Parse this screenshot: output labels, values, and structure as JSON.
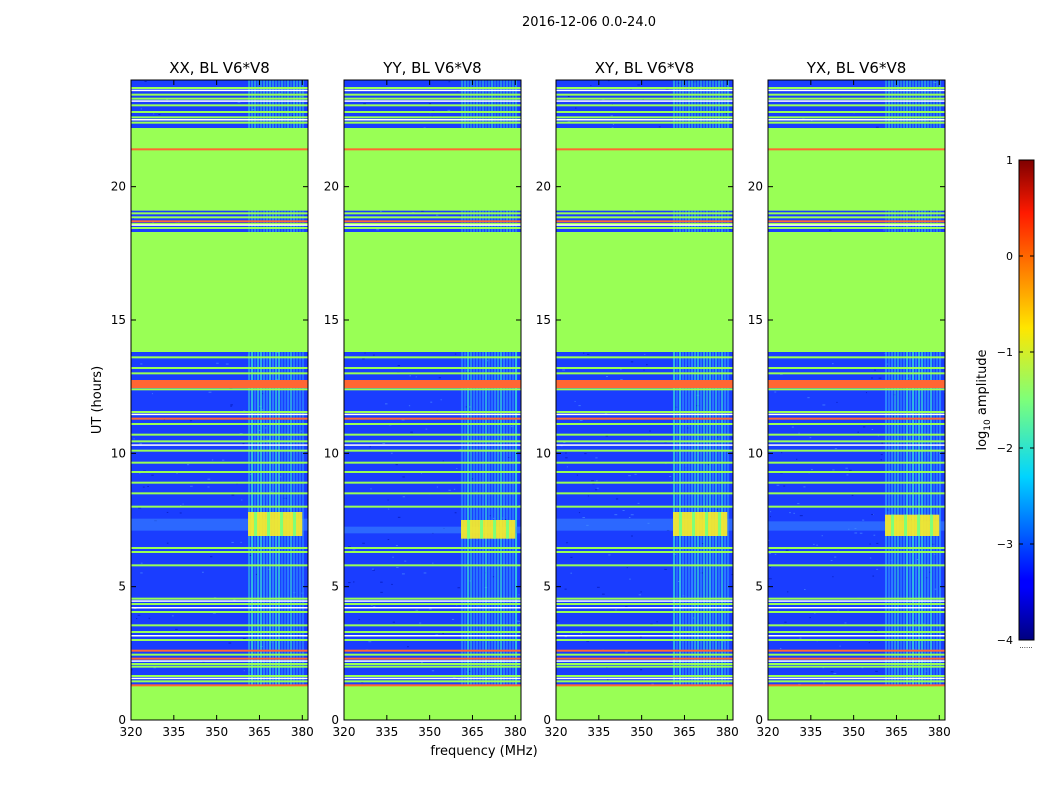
{
  "chart_data": {
    "type": "heatmap",
    "suptitle": "2016-12-06 0.0-24.0",
    "xlabel": "frequency (MHz)",
    "ylabel": "UT (hours)",
    "xlim": [
      320,
      382
    ],
    "ylim": [
      0,
      24
    ],
    "xticks": [
      320,
      335,
      350,
      365,
      380
    ],
    "yticks": [
      0,
      5,
      10,
      15,
      20
    ],
    "panels": [
      {
        "title": "XX, BL V6*V8",
        "bright_band_hours": [
          6.9,
          7.8
        ]
      },
      {
        "title": "YY, BL V6*V8",
        "bright_band_hours": [
          6.8,
          7.5
        ]
      },
      {
        "title": "XY, BL V6*V8",
        "bright_band_hours": [
          6.9,
          7.8
        ]
      },
      {
        "title": "YX, BL V6*V8",
        "bright_band_hours": [
          6.9,
          7.7
        ]
      }
    ],
    "rfi_band_mhz": [
      361,
      380
    ],
    "flagged_hours": [
      [
        0,
        1.3
      ],
      [
        13.8,
        18.3
      ],
      [
        19.1,
        22.2
      ]
    ],
    "orange_rows_hours": [
      1.3,
      2.3,
      2.6,
      11.3,
      12.6,
      12.7,
      18.7,
      21.4
    ],
    "colorbar": {
      "label": "log",
      "label_sub": "10",
      "label_suffix": " amplitude",
      "range": [
        -4,
        1
      ],
      "ticks": [
        "1",
        "0",
        "−1",
        "−2",
        "−3",
        "−4"
      ],
      "tick_values": [
        1,
        0,
        -1,
        -2,
        -3,
        -4
      ],
      "dots": "......"
    },
    "colors": {
      "flagged": "#99ff55",
      "background": "#1a3dff",
      "rfi": "#33ccdd",
      "bright": "#ffee22",
      "orange": "#ff6633"
    }
  }
}
